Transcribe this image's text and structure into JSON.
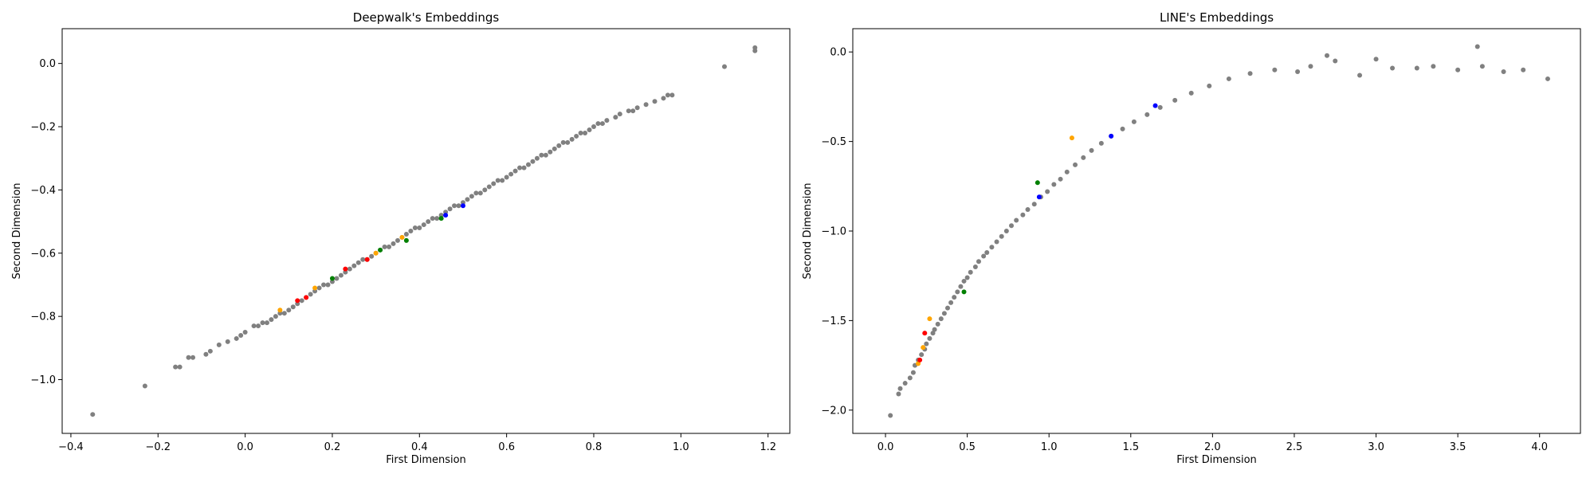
{
  "chart_data": [
    {
      "type": "scatter",
      "title": "Deepwalk's Embeddings",
      "xlabel": "First Dimension",
      "ylabel": "Second Dimension",
      "xlim": [
        -0.42,
        1.25
      ],
      "ylim": [
        -1.17,
        0.11
      ],
      "xticks": [
        -0.4,
        -0.2,
        0.0,
        0.2,
        0.4,
        0.6,
        0.8,
        1.0,
        1.2
      ],
      "xtick_labels": [
        "−0.4",
        "−0.2",
        "0.0",
        "0.2",
        "0.4",
        "0.6",
        "0.8",
        "1.0",
        "1.2"
      ],
      "yticks": [
        -1.0,
        -0.8,
        -0.6,
        -0.4,
        -0.2,
        0.0
      ],
      "ytick_labels": [
        "−1.0",
        "−0.8",
        "−0.6",
        "−0.4",
        "−0.2",
        "0.0"
      ],
      "grid": false,
      "series": [
        {
          "color": "#808080",
          "points": [
            [
              -0.35,
              -1.11
            ],
            [
              -0.23,
              -1.02
            ],
            [
              -0.16,
              -0.96
            ],
            [
              -0.15,
              -0.96
            ],
            [
              -0.13,
              -0.93
            ],
            [
              -0.12,
              -0.93
            ],
            [
              -0.09,
              -0.92
            ],
            [
              -0.08,
              -0.91
            ],
            [
              -0.06,
              -0.89
            ],
            [
              -0.04,
              -0.88
            ],
            [
              -0.02,
              -0.87
            ],
            [
              -0.01,
              -0.86
            ],
            [
              0.0,
              -0.85
            ],
            [
              0.02,
              -0.83
            ],
            [
              0.03,
              -0.83
            ],
            [
              0.04,
              -0.82
            ],
            [
              0.05,
              -0.82
            ],
            [
              0.06,
              -0.81
            ],
            [
              0.07,
              -0.8
            ],
            [
              0.08,
              -0.79
            ],
            [
              0.09,
              -0.79
            ],
            [
              0.1,
              -0.78
            ],
            [
              0.11,
              -0.77
            ],
            [
              0.12,
              -0.76
            ],
            [
              0.13,
              -0.75
            ],
            [
              0.14,
              -0.74
            ],
            [
              0.15,
              -0.73
            ],
            [
              0.16,
              -0.72
            ],
            [
              0.17,
              -0.71
            ],
            [
              0.18,
              -0.7
            ],
            [
              0.19,
              -0.7
            ],
            [
              0.2,
              -0.69
            ],
            [
              0.21,
              -0.68
            ],
            [
              0.22,
              -0.67
            ],
            [
              0.23,
              -0.66
            ],
            [
              0.24,
              -0.65
            ],
            [
              0.25,
              -0.64
            ],
            [
              0.26,
              -0.63
            ],
            [
              0.27,
              -0.62
            ],
            [
              0.28,
              -0.62
            ],
            [
              0.29,
              -0.61
            ],
            [
              0.3,
              -0.6
            ],
            [
              0.31,
              -0.59
            ],
            [
              0.32,
              -0.58
            ],
            [
              0.33,
              -0.58
            ],
            [
              0.34,
              -0.57
            ],
            [
              0.35,
              -0.56
            ],
            [
              0.36,
              -0.55
            ],
            [
              0.37,
              -0.54
            ],
            [
              0.38,
              -0.53
            ],
            [
              0.39,
              -0.52
            ],
            [
              0.4,
              -0.52
            ],
            [
              0.41,
              -0.51
            ],
            [
              0.42,
              -0.5
            ],
            [
              0.43,
              -0.49
            ],
            [
              0.44,
              -0.49
            ],
            [
              0.45,
              -0.48
            ],
            [
              0.46,
              -0.47
            ],
            [
              0.47,
              -0.46
            ],
            [
              0.48,
              -0.45
            ],
            [
              0.49,
              -0.45
            ],
            [
              0.5,
              -0.44
            ],
            [
              0.51,
              -0.43
            ],
            [
              0.52,
              -0.42
            ],
            [
              0.53,
              -0.41
            ],
            [
              0.54,
              -0.41
            ],
            [
              0.55,
              -0.4
            ],
            [
              0.56,
              -0.39
            ],
            [
              0.57,
              -0.38
            ],
            [
              0.58,
              -0.37
            ],
            [
              0.59,
              -0.37
            ],
            [
              0.6,
              -0.36
            ],
            [
              0.61,
              -0.35
            ],
            [
              0.62,
              -0.34
            ],
            [
              0.63,
              -0.33
            ],
            [
              0.64,
              -0.33
            ],
            [
              0.65,
              -0.32
            ],
            [
              0.66,
              -0.31
            ],
            [
              0.67,
              -0.3
            ],
            [
              0.68,
              -0.29
            ],
            [
              0.69,
              -0.29
            ],
            [
              0.7,
              -0.28
            ],
            [
              0.71,
              -0.27
            ],
            [
              0.72,
              -0.26
            ],
            [
              0.73,
              -0.25
            ],
            [
              0.74,
              -0.25
            ],
            [
              0.75,
              -0.24
            ],
            [
              0.76,
              -0.23
            ],
            [
              0.77,
              -0.22
            ],
            [
              0.78,
              -0.22
            ],
            [
              0.79,
              -0.21
            ],
            [
              0.8,
              -0.2
            ],
            [
              0.81,
              -0.19
            ],
            [
              0.82,
              -0.19
            ],
            [
              0.83,
              -0.18
            ],
            [
              0.85,
              -0.17
            ],
            [
              0.86,
              -0.16
            ],
            [
              0.88,
              -0.15
            ],
            [
              0.89,
              -0.15
            ],
            [
              0.9,
              -0.14
            ],
            [
              0.92,
              -0.13
            ],
            [
              0.94,
              -0.12
            ],
            [
              0.96,
              -0.11
            ],
            [
              0.97,
              -0.1
            ],
            [
              0.98,
              -0.1
            ],
            [
              1.1,
              -0.01
            ],
            [
              1.17,
              0.05
            ],
            [
              1.17,
              0.04
            ]
          ]
        },
        {
          "color": "#ffa500",
          "points": [
            [
              0.08,
              -0.78
            ],
            [
              0.16,
              -0.71
            ],
            [
              0.3,
              -0.6
            ],
            [
              0.36,
              -0.55
            ]
          ]
        },
        {
          "color": "#ff0000",
          "points": [
            [
              0.12,
              -0.75
            ],
            [
              0.14,
              -0.74
            ],
            [
              0.23,
              -0.65
            ],
            [
              0.28,
              -0.62
            ]
          ]
        },
        {
          "color": "#008000",
          "points": [
            [
              0.2,
              -0.68
            ],
            [
              0.31,
              -0.59
            ],
            [
              0.37,
              -0.56
            ],
            [
              0.45,
              -0.49
            ]
          ]
        },
        {
          "color": "#0000ff",
          "points": [
            [
              0.46,
              -0.48
            ],
            [
              0.5,
              -0.45
            ]
          ]
        }
      ]
    },
    {
      "type": "scatter",
      "title": "LINE's Embeddings",
      "xlabel": "First Dimension",
      "ylabel": "Second Dimension",
      "xlim": [
        -0.2,
        4.25
      ],
      "ylim": [
        -2.13,
        0.13
      ],
      "xticks": [
        0.0,
        0.5,
        1.0,
        1.5,
        2.0,
        2.5,
        3.0,
        3.5,
        4.0
      ],
      "xtick_labels": [
        "0.0",
        "0.5",
        "1.0",
        "1.5",
        "2.0",
        "2.5",
        "3.0",
        "3.5",
        "4.0"
      ],
      "yticks": [
        -2.0,
        -1.5,
        -1.0,
        -0.5,
        0.0
      ],
      "ytick_labels": [
        "−2.0",
        "−1.5",
        "−1.0",
        "−0.5",
        "0.0"
      ],
      "grid": false,
      "series": [
        {
          "color": "#808080",
          "points": [
            [
              0.03,
              -2.03
            ],
            [
              0.08,
              -1.91
            ],
            [
              0.09,
              -1.88
            ],
            [
              0.12,
              -1.85
            ],
            [
              0.15,
              -1.82
            ],
            [
              0.17,
              -1.79
            ],
            [
              0.18,
              -1.75
            ],
            [
              0.2,
              -1.72
            ],
            [
              0.22,
              -1.69
            ],
            [
              0.24,
              -1.66
            ],
            [
              0.25,
              -1.63
            ],
            [
              0.27,
              -1.6
            ],
            [
              0.29,
              -1.57
            ],
            [
              0.3,
              -1.55
            ],
            [
              0.32,
              -1.52
            ],
            [
              0.34,
              -1.49
            ],
            [
              0.36,
              -1.46
            ],
            [
              0.38,
              -1.43
            ],
            [
              0.4,
              -1.4
            ],
            [
              0.42,
              -1.37
            ],
            [
              0.44,
              -1.34
            ],
            [
              0.46,
              -1.31
            ],
            [
              0.48,
              -1.28
            ],
            [
              0.5,
              -1.26
            ],
            [
              0.52,
              -1.23
            ],
            [
              0.55,
              -1.2
            ],
            [
              0.57,
              -1.17
            ],
            [
              0.6,
              -1.14
            ],
            [
              0.62,
              -1.12
            ],
            [
              0.65,
              -1.09
            ],
            [
              0.68,
              -1.06
            ],
            [
              0.71,
              -1.03
            ],
            [
              0.74,
              -1.0
            ],
            [
              0.77,
              -0.97
            ],
            [
              0.8,
              -0.94
            ],
            [
              0.84,
              -0.91
            ],
            [
              0.87,
              -0.88
            ],
            [
              0.91,
              -0.85
            ],
            [
              0.95,
              -0.81
            ],
            [
              0.99,
              -0.78
            ],
            [
              1.03,
              -0.74
            ],
            [
              1.07,
              -0.71
            ],
            [
              1.11,
              -0.67
            ],
            [
              1.16,
              -0.63
            ],
            [
              1.21,
              -0.59
            ],
            [
              1.26,
              -0.55
            ],
            [
              1.32,
              -0.51
            ],
            [
              1.38,
              -0.47
            ],
            [
              1.45,
              -0.43
            ],
            [
              1.52,
              -0.39
            ],
            [
              1.6,
              -0.35
            ],
            [
              1.68,
              -0.31
            ],
            [
              1.77,
              -0.27
            ],
            [
              1.87,
              -0.23
            ],
            [
              1.98,
              -0.19
            ],
            [
              2.1,
              -0.15
            ],
            [
              2.23,
              -0.12
            ],
            [
              2.38,
              -0.1
            ],
            [
              2.52,
              -0.11
            ],
            [
              2.6,
              -0.08
            ],
            [
              2.7,
              -0.02
            ],
            [
              2.75,
              -0.05
            ],
            [
              2.9,
              -0.13
            ],
            [
              3.0,
              -0.04
            ],
            [
              3.1,
              -0.09
            ],
            [
              3.25,
              -0.09
            ],
            [
              3.35,
              -0.08
            ],
            [
              3.5,
              -0.1
            ],
            [
              3.62,
              0.03
            ],
            [
              3.65,
              -0.08
            ],
            [
              3.78,
              -0.11
            ],
            [
              3.9,
              -0.1
            ],
            [
              4.05,
              -0.15
            ]
          ]
        },
        {
          "color": "#ffa500",
          "points": [
            [
              0.2,
              -1.74
            ],
            [
              0.23,
              -1.65
            ],
            [
              0.27,
              -1.49
            ],
            [
              1.14,
              -0.48
            ]
          ]
        },
        {
          "color": "#ff0000",
          "points": [
            [
              0.21,
              -1.72
            ],
            [
              0.24,
              -1.57
            ]
          ]
        },
        {
          "color": "#008000",
          "points": [
            [
              0.48,
              -1.34
            ],
            [
              0.93,
              -0.73
            ]
          ]
        },
        {
          "color": "#0000ff",
          "points": [
            [
              0.94,
              -0.81
            ],
            [
              1.38,
              -0.47
            ],
            [
              1.65,
              -0.3
            ]
          ]
        }
      ]
    }
  ]
}
